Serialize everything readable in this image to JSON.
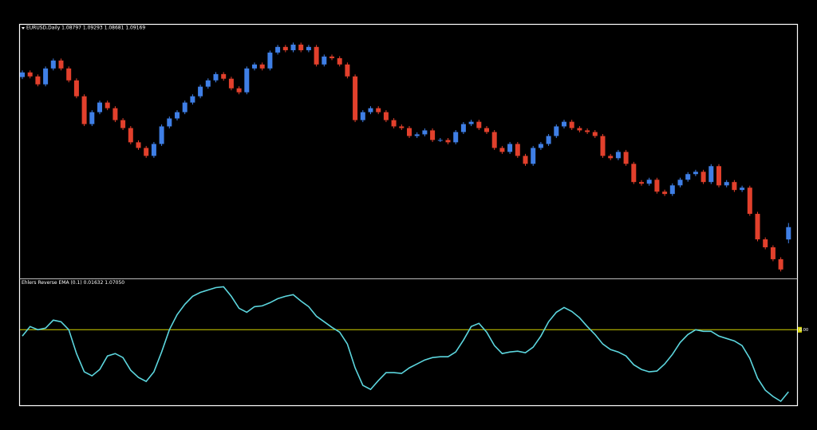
{
  "chart_data": [
    {
      "type": "candlestick",
      "title": "EURUSD,Daily  1.08797 1.09293 1.08681 1.09169",
      "up_color": "#3f7fe6",
      "down_color": "#e2402c",
      "ylim": [
        1.0762,
        1.1528
      ],
      "series": {
        "open": [
          1.137,
          1.1384,
          1.1372,
          1.1348,
          1.1396,
          1.142,
          1.1396,
          1.136,
          1.1312,
          1.1228,
          1.1264,
          1.1293,
          1.1276,
          1.124,
          1.1216,
          1.1173,
          1.1156,
          1.1132,
          1.1168,
          1.1221,
          1.1245,
          1.1264,
          1.1293,
          1.1312,
          1.1341,
          1.136,
          1.1379,
          1.1365,
          1.1336,
          1.1324,
          1.1396,
          1.1408,
          1.1396,
          1.1444,
          1.1461,
          1.1451,
          1.1468,
          1.1451,
          1.1461,
          1.1408,
          1.1432,
          1.1427,
          1.1408,
          1.1372,
          1.124,
          1.1264,
          1.1276,
          1.1264,
          1.124,
          1.1221,
          1.1216,
          1.1192,
          1.1197,
          1.1209,
          1.118,
          1.118,
          1.1173,
          1.1204,
          1.1228,
          1.1235,
          1.1216,
          1.1204,
          1.1156,
          1.1144,
          1.1168,
          1.1132,
          1.1108,
          1.1156,
          1.1168,
          1.1192,
          1.1221,
          1.1235,
          1.1216,
          1.1209,
          1.1204,
          1.1192,
          1.1132,
          1.1125,
          1.1144,
          1.1108,
          1.1053,
          1.1048,
          1.106,
          1.1024,
          1.1017,
          1.1043,
          1.106,
          1.1077,
          1.1084,
          1.1053,
          1.1101,
          1.1043,
          1.1053,
          1.1029,
          1.1036,
          1.0957,
          1.088,
          1.0856,
          1.082,
          1.08797
        ],
        "high": [
          1.139,
          1.139,
          1.1378,
          1.1402,
          1.1426,
          1.1426,
          1.1402,
          1.1366,
          1.1318,
          1.127,
          1.1299,
          1.1299,
          1.1282,
          1.1246,
          1.1222,
          1.1179,
          1.1162,
          1.1174,
          1.1227,
          1.1251,
          1.127,
          1.1299,
          1.1318,
          1.1347,
          1.1366,
          1.1385,
          1.1385,
          1.1371,
          1.1342,
          1.1402,
          1.1414,
          1.1414,
          1.145,
          1.1467,
          1.1467,
          1.1474,
          1.1474,
          1.1467,
          1.1467,
          1.1438,
          1.1438,
          1.1433,
          1.1414,
          1.1378,
          1.127,
          1.1282,
          1.1282,
          1.127,
          1.1246,
          1.1227,
          1.1222,
          1.1203,
          1.1215,
          1.1215,
          1.1186,
          1.1186,
          1.121,
          1.1234,
          1.1241,
          1.1241,
          1.1222,
          1.121,
          1.1162,
          1.1174,
          1.1174,
          1.1138,
          1.1162,
          1.1174,
          1.1198,
          1.1227,
          1.1241,
          1.1241,
          1.1222,
          1.1215,
          1.121,
          1.1198,
          1.1138,
          1.115,
          1.115,
          1.1114,
          1.1059,
          1.1066,
          1.1066,
          1.103,
          1.1049,
          1.1066,
          1.1083,
          1.109,
          1.109,
          1.1107,
          1.1107,
          1.1059,
          1.1059,
          1.1042,
          1.1042,
          1.0963,
          1.0886,
          1.0862,
          1.0826,
          1.09293
        ],
        "low": [
          1.1364,
          1.1366,
          1.1342,
          1.1342,
          1.139,
          1.139,
          1.1354,
          1.1306,
          1.1222,
          1.1222,
          1.1258,
          1.127,
          1.1234,
          1.121,
          1.1167,
          1.115,
          1.1126,
          1.1126,
          1.1162,
          1.1215,
          1.1239,
          1.1258,
          1.1287,
          1.1306,
          1.1335,
          1.1354,
          1.1359,
          1.133,
          1.1318,
          1.1318,
          1.139,
          1.139,
          1.139,
          1.1438,
          1.1445,
          1.1445,
          1.1445,
          1.1445,
          1.1402,
          1.1402,
          1.1421,
          1.1402,
          1.1366,
          1.1234,
          1.1234,
          1.1258,
          1.1258,
          1.1234,
          1.1215,
          1.121,
          1.1186,
          1.1186,
          1.1191,
          1.1174,
          1.1174,
          1.1167,
          1.1167,
          1.1198,
          1.1222,
          1.121,
          1.1198,
          1.115,
          1.1138,
          1.1138,
          1.1126,
          1.1102,
          1.1102,
          1.115,
          1.1162,
          1.1186,
          1.1215,
          1.121,
          1.1203,
          1.1198,
          1.1186,
          1.1126,
          1.1119,
          1.1119,
          1.1102,
          1.1047,
          1.1042,
          1.1042,
          1.1018,
          1.1011,
          1.1011,
          1.1037,
          1.1054,
          1.1071,
          1.1047,
          1.1047,
          1.1037,
          1.1037,
          1.1023,
          1.1023,
          1.0951,
          1.0874,
          1.085,
          1.0814,
          1.0783,
          1.08681
        ],
        "close": [
          1.1384,
          1.1372,
          1.1348,
          1.1396,
          1.142,
          1.1396,
          1.136,
          1.1312,
          1.1228,
          1.1264,
          1.1293,
          1.1276,
          1.124,
          1.1216,
          1.1173,
          1.1156,
          1.1132,
          1.1168,
          1.1221,
          1.1245,
          1.1264,
          1.1293,
          1.1312,
          1.1341,
          1.136,
          1.1379,
          1.1365,
          1.1336,
          1.1324,
          1.1396,
          1.1408,
          1.1396,
          1.1444,
          1.1461,
          1.1451,
          1.1468,
          1.1451,
          1.1461,
          1.1408,
          1.1432,
          1.1427,
          1.1408,
          1.1372,
          1.124,
          1.1264,
          1.1276,
          1.1264,
          1.124,
          1.1221,
          1.1216,
          1.1192,
          1.1197,
          1.1209,
          1.118,
          1.118,
          1.1173,
          1.1204,
          1.1228,
          1.1235,
          1.1216,
          1.1204,
          1.1156,
          1.1144,
          1.1168,
          1.1132,
          1.1108,
          1.1156,
          1.1168,
          1.1192,
          1.1221,
          1.1235,
          1.1216,
          1.1209,
          1.1204,
          1.1192,
          1.1132,
          1.1125,
          1.1144,
          1.1108,
          1.1053,
          1.1048,
          1.106,
          1.1024,
          1.1017,
          1.1043,
          1.106,
          1.1077,
          1.1084,
          1.1053,
          1.1101,
          1.1043,
          1.1053,
          1.1029,
          1.1036,
          1.0957,
          1.088,
          1.0856,
          1.082,
          1.0789,
          1.09169
        ]
      }
    },
    {
      "type": "line",
      "title": "Ehlers Reverse EMA (0.1) 0.01632 1.07050",
      "color": "#5cd6de",
      "ylim": [
        -0.038,
        0.025
      ],
      "levels": [
        {
          "value": 0,
          "label": "0.00"
        }
      ],
      "level_color": "#d2d200",
      "values": [
        -0.0032,
        0.0016,
        0,
        0.0008,
        0.0048,
        0.004,
        0,
        -0.012,
        -0.0212,
        -0.0232,
        -0.02,
        -0.0132,
        -0.012,
        -0.014,
        -0.0204,
        -0.024,
        -0.026,
        -0.0212,
        -0.0112,
        0,
        0.0076,
        0.0128,
        0.0168,
        0.0188,
        0.02,
        0.0212,
        0.0216,
        0.0168,
        0.0108,
        0.0088,
        0.0116,
        0.012,
        0.0136,
        0.0156,
        0.0168,
        0.0176,
        0.0144,
        0.0116,
        0.0068,
        0.004,
        0.0012,
        -0.0012,
        -0.0072,
        -0.0192,
        -0.028,
        -0.03,
        -0.0256,
        -0.0216,
        -0.0216,
        -0.022,
        -0.0192,
        -0.0172,
        -0.0152,
        -0.014,
        -0.0136,
        -0.0136,
        -0.0112,
        -0.0052,
        0.0016,
        0.0032,
        -0.0012,
        -0.008,
        -0.012,
        -0.0112,
        -0.0108,
        -0.0116,
        -0.0088,
        -0.0032,
        0.004,
        0.0088,
        0.0112,
        0.0092,
        0.006,
        0.0016,
        -0.0024,
        -0.0072,
        -0.01,
        -0.0112,
        -0.0132,
        -0.0176,
        -0.02,
        -0.0212,
        -0.0208,
        -0.0172,
        -0.0124,
        -0.0064,
        -0.0024,
        0,
        -0.0008,
        -0.0008,
        -0.0032,
        -0.0044,
        -0.0056,
        -0.008,
        -0.0144,
        -0.0244,
        -0.0304,
        -0.0336,
        -0.036,
        -0.0312
      ]
    }
  ]
}
